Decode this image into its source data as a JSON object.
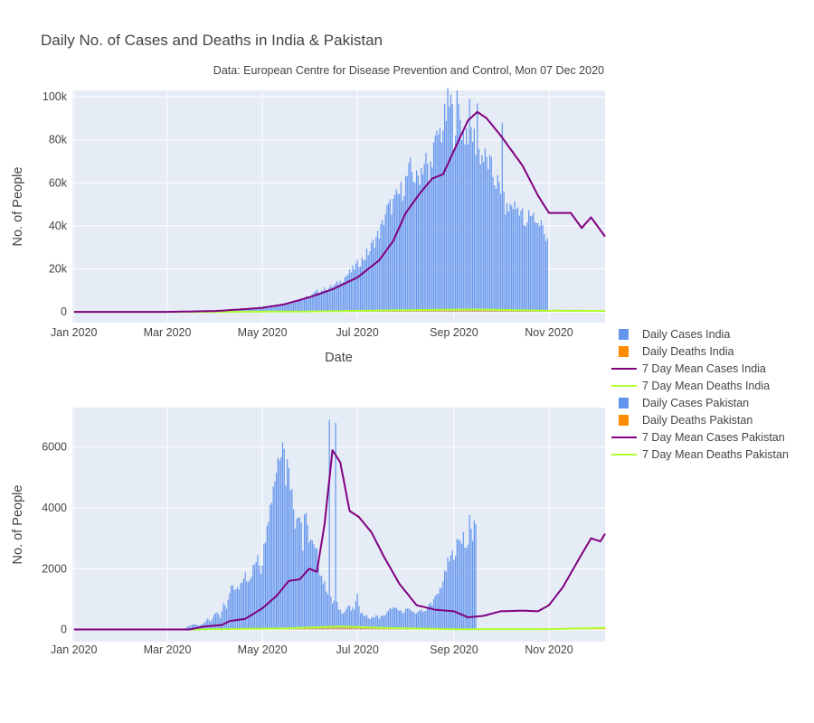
{
  "title": "Daily No. of Cases and Deaths in India & Pakistan",
  "subtitle": "Data: European Centre for Disease Prevention and Control, Mon 07 Dec 2020",
  "colors": {
    "daily_cases": "#6495ED",
    "daily_deaths": "#FF8C00",
    "mean_cases": "#800080",
    "mean_deaths": "#ADFF2F",
    "plot_bg": "#E5ECF6",
    "grid": "#FFFFFF"
  },
  "legend": [
    {
      "name": "Daily Cases India",
      "kind": "bar",
      "color": "#6495ED"
    },
    {
      "name": "Daily Deaths India",
      "kind": "bar",
      "color": "#FF8C00"
    },
    {
      "name": "7 Day Mean Cases India",
      "kind": "line",
      "color": "#800080"
    },
    {
      "name": "7 Day Mean Deaths India",
      "kind": "line",
      "color": "#ADFF2F"
    },
    {
      "name": "Daily Cases Pakistan",
      "kind": "bar",
      "color": "#6495ED"
    },
    {
      "name": "Daily Deaths Pakistan",
      "kind": "bar",
      "color": "#FF8C00"
    },
    {
      "name": "7 Day Mean Cases Pakistan",
      "kind": "line",
      "color": "#800080"
    },
    {
      "name": "7 Day Mean Deaths Pakistan",
      "kind": "line",
      "color": "#ADFF2F"
    }
  ],
  "chart_data": [
    {
      "type": "bar",
      "country": "India",
      "xlabel": "Date",
      "ylabel": "No. of People",
      "xlim": [
        "2019-12-31",
        "2020-12-07"
      ],
      "ylim": [
        -5000,
        103000
      ],
      "x_ticks": [
        {
          "date": "2020-01-01",
          "label": "Jan 2020"
        },
        {
          "date": "2020-03-01",
          "label": "Mar 2020"
        },
        {
          "date": "2020-05-01",
          "label": "May 2020"
        },
        {
          "date": "2020-07-01",
          "label": "Jul 2020"
        },
        {
          "date": "2020-09-01",
          "label": "Sep 2020"
        },
        {
          "date": "2020-11-01",
          "label": "Nov 2020"
        }
      ],
      "y_ticks": [
        {
          "value": 0,
          "label": "0"
        },
        {
          "value": 20000,
          "label": "20k"
        },
        {
          "value": 40000,
          "label": "40k"
        },
        {
          "value": 60000,
          "label": "60k"
        },
        {
          "value": 80000,
          "label": "80k"
        },
        {
          "value": 100000,
          "label": "100k"
        }
      ],
      "cases_start": "2020-03-01",
      "cases_step_days": 2,
      "daily_cases": [
        0,
        0,
        1,
        2,
        5,
        6,
        10,
        15,
        20,
        30,
        50,
        60,
        100,
        130,
        160,
        200,
        300,
        400,
        500,
        700,
        900,
        1100,
        1200,
        1200,
        1400,
        1500,
        1600,
        1700,
        1800,
        1900,
        2000,
        2600,
        2800,
        3000,
        3200,
        3400,
        3500,
        3600,
        3700,
        4000,
        4600,
        5000,
        5600,
        6100,
        6500,
        7000,
        7500,
        8500,
        9800,
        10000,
        10500,
        11000,
        11500,
        12000,
        12800,
        13800,
        15000,
        16500,
        18000,
        19000,
        21000,
        22500,
        24000,
        25500,
        27500,
        29000,
        32500,
        35000,
        37500,
        41000,
        47000,
        49000,
        50500,
        52000,
        55000,
        57000,
        60000,
        64000,
        67000,
        65000,
        62000,
        66000,
        70000,
        72000,
        62000,
        76000,
        78000,
        84000,
        86000,
        90000,
        97000,
        99000,
        86000,
        97000,
        92000,
        84000,
        86000,
        87000,
        84000,
        80000,
        76000,
        74000,
        72000,
        71000,
        67000,
        63000,
        61000,
        55000,
        52000,
        48000,
        50000,
        51000,
        49000,
        50000,
        46000,
        38000,
        46000,
        47000,
        45000,
        41000,
        42000,
        37000,
        36000
      ],
      "daily_cases_peaks": [
        {
          "date": "2020-09-11",
          "value": 99000
        },
        {
          "date": "2020-09-16",
          "value": 97000
        },
        {
          "date": "2020-10-02",
          "value": 88000
        },
        {
          "date": "2020-12-05",
          "value": 33000
        }
      ],
      "mean_cases": [
        {
          "date": "2020-01-01",
          "value": 0
        },
        {
          "date": "2020-03-01",
          "value": 10
        },
        {
          "date": "2020-04-01",
          "value": 400
        },
        {
          "date": "2020-04-20",
          "value": 1300
        },
        {
          "date": "2020-05-01",
          "value": 1900
        },
        {
          "date": "2020-05-15",
          "value": 3500
        },
        {
          "date": "2020-06-01",
          "value": 7000
        },
        {
          "date": "2020-06-15",
          "value": 10500
        },
        {
          "date": "2020-07-01",
          "value": 16000
        },
        {
          "date": "2020-07-15",
          "value": 24000
        },
        {
          "date": "2020-07-24",
          "value": 33000
        },
        {
          "date": "2020-08-01",
          "value": 46000
        },
        {
          "date": "2020-08-10",
          "value": 55000
        },
        {
          "date": "2020-08-18",
          "value": 62000
        },
        {
          "date": "2020-08-25",
          "value": 64000
        },
        {
          "date": "2020-09-01",
          "value": 75000
        },
        {
          "date": "2020-09-10",
          "value": 89000
        },
        {
          "date": "2020-09-16",
          "value": 93000
        },
        {
          "date": "2020-09-22",
          "value": 90000
        },
        {
          "date": "2020-10-01",
          "value": 82000
        },
        {
          "date": "2020-10-15",
          "value": 68000
        },
        {
          "date": "2020-10-25",
          "value": 54000
        },
        {
          "date": "2020-11-01",
          "value": 46000
        },
        {
          "date": "2020-11-15",
          "value": 46000
        },
        {
          "date": "2020-11-22",
          "value": 39000
        },
        {
          "date": "2020-11-28",
          "value": 44000
        },
        {
          "date": "2020-12-07",
          "value": 35000
        }
      ],
      "daily_deaths": [
        {
          "date": "2020-03-15",
          "value": 5
        },
        {
          "date": "2020-05-01",
          "value": 80
        },
        {
          "date": "2020-07-01",
          "value": 400
        },
        {
          "date": "2020-09-01",
          "value": 1050
        },
        {
          "date": "2020-10-01",
          "value": 1100
        },
        {
          "date": "2020-11-01",
          "value": 500
        },
        {
          "date": "2020-12-07",
          "value": 400
        }
      ],
      "mean_deaths": [
        {
          "date": "2020-01-01",
          "value": 0
        },
        {
          "date": "2020-04-01",
          "value": 5
        },
        {
          "date": "2020-06-01",
          "value": 200
        },
        {
          "date": "2020-08-01",
          "value": 800
        },
        {
          "date": "2020-09-15",
          "value": 1100
        },
        {
          "date": "2020-11-01",
          "value": 550
        },
        {
          "date": "2020-12-07",
          "value": 450
        }
      ]
    },
    {
      "type": "bar",
      "country": "Pakistan",
      "xlabel": "",
      "ylabel": "No. of People",
      "xlim": [
        "2019-12-31",
        "2020-12-07"
      ],
      "ylim": [
        -400,
        7300
      ],
      "x_ticks": [
        {
          "date": "2020-01-01",
          "label": "Jan 2020"
        },
        {
          "date": "2020-03-01",
          "label": "Mar 2020"
        },
        {
          "date": "2020-05-01",
          "label": "May 2020"
        },
        {
          "date": "2020-07-01",
          "label": "Jul 2020"
        },
        {
          "date": "2020-09-01",
          "label": "Sep 2020"
        },
        {
          "date": "2020-11-01",
          "label": "Nov 2020"
        }
      ],
      "y_ticks": [
        {
          "value": 0,
          "label": "0"
        },
        {
          "value": 2000,
          "label": "2000"
        },
        {
          "value": 4000,
          "label": "4000"
        },
        {
          "value": 6000,
          "label": "6000"
        }
      ],
      "cases_start": "2020-03-01",
      "cases_step_days": 2,
      "daily_cases": [
        0,
        1,
        2,
        3,
        5,
        10,
        60,
        120,
        150,
        180,
        130,
        160,
        250,
        380,
        300,
        450,
        600,
        400,
        800,
        700,
        1200,
        1500,
        1300,
        1400,
        1700,
        2000,
        1500,
        1800,
        2200,
        2600,
        2000,
        2700,
        3800,
        4100,
        4900,
        5400,
        6100,
        6700,
        5200,
        5800,
        4500,
        3700,
        4100,
        3600,
        3900,
        3300,
        3000,
        2700,
        2500,
        2000,
        1600,
        1400,
        1150,
        900,
        1000,
        700,
        600,
        600,
        800,
        650,
        700,
        1100,
        600,
        500,
        450,
        350,
        400,
        480,
        380,
        450,
        500,
        600,
        750,
        680,
        650,
        600,
        620,
        700,
        600,
        620,
        500,
        700,
        640,
        600,
        850,
        900,
        1050,
        1200,
        1500,
        1800,
        2200,
        2400,
        2600,
        2800,
        3000,
        3200,
        2700,
        3500,
        3100,
        3800
      ],
      "daily_cases_peaks": [
        {
          "date": "2020-06-13",
          "value": 6900
        },
        {
          "date": "2020-06-17",
          "value": 6800
        },
        {
          "date": "2020-05-27",
          "value": 2600
        },
        {
          "date": "2020-12-07",
          "value": 3800
        }
      ],
      "mean_cases": [
        {
          "date": "2020-01-01",
          "value": 0
        },
        {
          "date": "2020-03-15",
          "value": 0
        },
        {
          "date": "2020-03-25",
          "value": 100
        },
        {
          "date": "2020-04-05",
          "value": 150
        },
        {
          "date": "2020-04-10",
          "value": 280
        },
        {
          "date": "2020-04-20",
          "value": 350
        },
        {
          "date": "2020-05-01",
          "value": 700
        },
        {
          "date": "2020-05-10",
          "value": 1100
        },
        {
          "date": "2020-05-18",
          "value": 1600
        },
        {
          "date": "2020-05-25",
          "value": 1650
        },
        {
          "date": "2020-05-31",
          "value": 2000
        },
        {
          "date": "2020-06-05",
          "value": 1900
        },
        {
          "date": "2020-06-10",
          "value": 3500
        },
        {
          "date": "2020-06-15",
          "value": 5900
        },
        {
          "date": "2020-06-20",
          "value": 5500
        },
        {
          "date": "2020-06-26",
          "value": 3900
        },
        {
          "date": "2020-07-02",
          "value": 3700
        },
        {
          "date": "2020-07-10",
          "value": 3200
        },
        {
          "date": "2020-07-18",
          "value": 2400
        },
        {
          "date": "2020-07-28",
          "value": 1500
        },
        {
          "date": "2020-08-08",
          "value": 800
        },
        {
          "date": "2020-08-20",
          "value": 650
        },
        {
          "date": "2020-09-01",
          "value": 600
        },
        {
          "date": "2020-09-10",
          "value": 400
        },
        {
          "date": "2020-09-20",
          "value": 450
        },
        {
          "date": "2020-10-01",
          "value": 600
        },
        {
          "date": "2020-10-15",
          "value": 620
        },
        {
          "date": "2020-10-25",
          "value": 600
        },
        {
          "date": "2020-11-01",
          "value": 800
        },
        {
          "date": "2020-11-10",
          "value": 1400
        },
        {
          "date": "2020-11-20",
          "value": 2300
        },
        {
          "date": "2020-11-28",
          "value": 3000
        },
        {
          "date": "2020-12-04",
          "value": 2900
        },
        {
          "date": "2020-12-07",
          "value": 3150
        }
      ],
      "daily_deaths": [
        {
          "date": "2020-04-01",
          "value": 5
        },
        {
          "date": "2020-05-15",
          "value": 40
        },
        {
          "date": "2020-06-15",
          "value": 120
        },
        {
          "date": "2020-07-15",
          "value": 60
        },
        {
          "date": "2020-09-01",
          "value": 10
        },
        {
          "date": "2020-11-01",
          "value": 15
        },
        {
          "date": "2020-12-07",
          "value": 60
        }
      ],
      "mean_deaths": [
        {
          "date": "2020-01-01",
          "value": 0
        },
        {
          "date": "2020-03-20",
          "value": 2
        },
        {
          "date": "2020-05-15",
          "value": 35
        },
        {
          "date": "2020-06-20",
          "value": 100
        },
        {
          "date": "2020-07-20",
          "value": 50
        },
        {
          "date": "2020-09-01",
          "value": 8
        },
        {
          "date": "2020-11-01",
          "value": 12
        },
        {
          "date": "2020-12-07",
          "value": 55
        }
      ]
    }
  ]
}
